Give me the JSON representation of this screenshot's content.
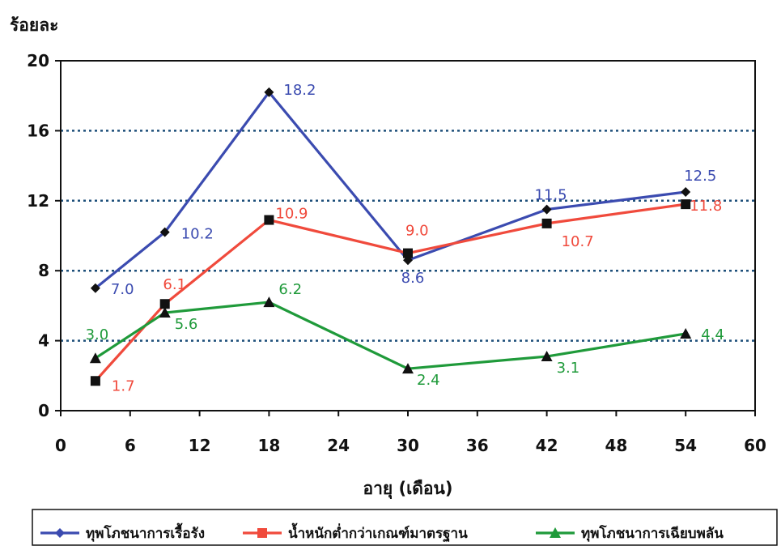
{
  "chart_data": {
    "type": "line",
    "ylabel": "ร้อยละ",
    "xlabel": "อายุ (เดือน)",
    "xlim": [
      0,
      60
    ],
    "ylim": [
      0,
      20
    ],
    "xticks": [
      0,
      6,
      12,
      18,
      24,
      30,
      36,
      42,
      48,
      54,
      60
    ],
    "yticks": [
      0,
      4,
      8,
      12,
      16,
      20
    ],
    "grid": "horizontal dotted",
    "legend_position": "bottom",
    "series": [
      {
        "name": "ทุพโภชนาการเรื้อรัง",
        "color": "#3b4bb0",
        "marker": "diamond",
        "x": [
          3,
          9,
          18,
          30,
          42,
          54
        ],
        "values": [
          7.0,
          10.2,
          18.2,
          8.6,
          11.5,
          12.5
        ],
        "labels": [
          "7.0",
          "10.2",
          "18.2",
          "8.6",
          "11.5",
          "12.5"
        ]
      },
      {
        "name": "น้ำหนักต่ำกว่าเกณฑ์มาตรฐาน",
        "color": "#f04a3c",
        "marker": "square",
        "x": [
          3,
          9,
          18,
          30,
          42,
          54
        ],
        "values": [
          1.7,
          6.1,
          10.9,
          9.0,
          10.7,
          11.8
        ],
        "labels": [
          "1.7",
          "6.1",
          "10.9",
          "9.0",
          "10.7",
          "11.8"
        ]
      },
      {
        "name": "ทุพโภชนาการเฉียบพลัน",
        "color": "#1f9a3a",
        "marker": "triangle",
        "x": [
          3,
          9,
          18,
          30,
          42,
          54
        ],
        "values": [
          3.0,
          5.6,
          6.2,
          2.4,
          3.1,
          4.4
        ],
        "labels": [
          "3.0",
          "5.6",
          "6.2",
          "2.4",
          "3.1",
          "4.4"
        ]
      }
    ]
  }
}
